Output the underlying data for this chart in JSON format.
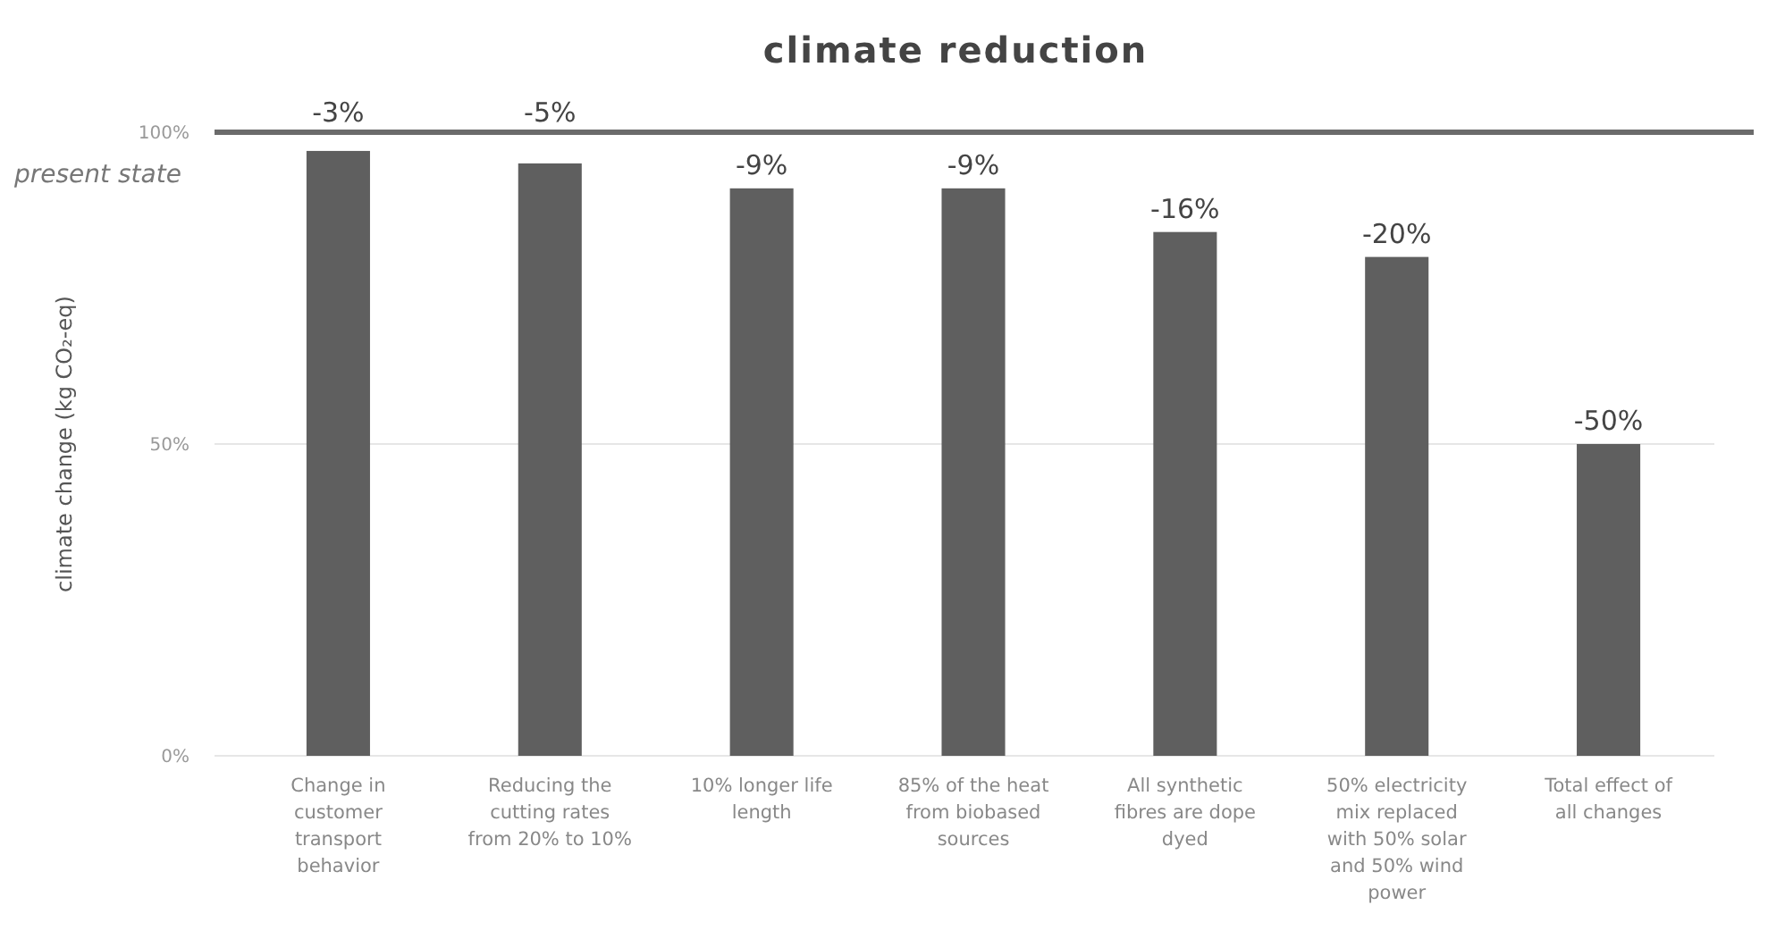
{
  "chart_data": {
    "type": "bar",
    "title": "climate reduction",
    "ylabel": "climate change (kg CO₂-eq)",
    "categories": [
      "Change in customer transport behavior",
      "Reducing the cutting rates from 20% to 10%",
      "10% longer life length",
      "85% of the heat from biobased sources",
      "All synthetic fibres are dope dyed",
      "50% electricity mix replaced with 50% solar and 50% wind power",
      "Total effect of all changes"
    ],
    "values": [
      97,
      95,
      91,
      91,
      84,
      80,
      50
    ],
    "annotations": [
      {
        "text": "-3%",
        "x": "Change in customer transport behavior",
        "y": 97
      },
      {
        "text": "-5%",
        "x": "Reducing the cutting rates from 20% to 10%",
        "y": 95
      },
      {
        "text": "-9%",
        "x": "10% longer life length",
        "y": 91
      },
      {
        "text": "-9%",
        "x": "85% of the heat from biobased sources",
        "y": 91
      },
      {
        "text": "-16%",
        "x": "All synthetic fibres are dope dyed",
        "y": 84
      },
      {
        "text": "-20%",
        "x": "50% electricity mix replaced with 50% solar and 50% wind power",
        "y": 80
      },
      {
        "text": "-50%",
        "x": "Total effect of all changes",
        "y": 50
      }
    ],
    "color": "#5f5f5f",
    "ylim": [
      0,
      100
    ],
    "yticks": [
      {
        "value": 0,
        "label": "0%"
      },
      {
        "value": 50,
        "label": "50%"
      },
      {
        "value": 100,
        "label": "100%"
      }
    ],
    "grid": "y",
    "ref_lines": [
      {
        "axis": "y",
        "value": 100,
        "label": "present state",
        "color": "#6b6b6b"
      }
    ]
  }
}
